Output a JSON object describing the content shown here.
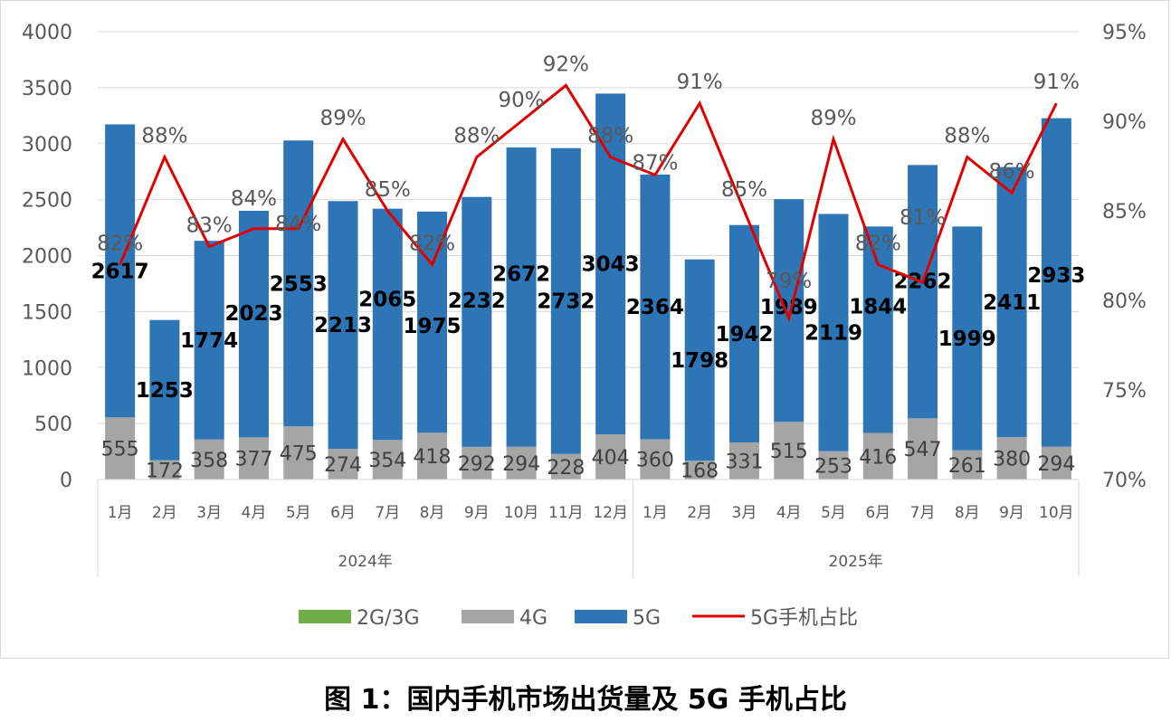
{
  "chart_data": {
    "type": "bar",
    "title": "图 1：国内手机市场出货量及 5G 手机占比",
    "categories": [
      "1月",
      "2月",
      "3月",
      "4月",
      "5月",
      "6月",
      "7月",
      "8月",
      "9月",
      "10月",
      "11月",
      "12月",
      "1月",
      "2月",
      "3月",
      "4月",
      "5月",
      "6月",
      "7月",
      "8月",
      "9月",
      "10月"
    ],
    "groups": [
      {
        "label": "2024年",
        "count": 12
      },
      {
        "label": "2025年",
        "count": 10
      }
    ],
    "series": [
      {
        "name": "2G/3G",
        "type": "stacked-bar",
        "color": "#70ad47",
        "values": [
          0,
          0,
          0,
          0,
          0,
          0,
          0,
          0,
          0,
          0,
          0,
          0,
          0,
          0,
          0,
          0,
          0,
          0,
          0,
          0,
          0,
          0
        ]
      },
      {
        "name": "4G",
        "type": "stacked-bar",
        "color": "#a5a5a5",
        "values": [
          555,
          172,
          358,
          377,
          475,
          274,
          354,
          418,
          292,
          294,
          228,
          404,
          360,
          168,
          331,
          515,
          253,
          416,
          547,
          261,
          380,
          294
        ]
      },
      {
        "name": "5G",
        "type": "stacked-bar",
        "color": "#2e75b6",
        "values": [
          2617,
          1253,
          1774,
          2023,
          2553,
          2213,
          2065,
          1975,
          2232,
          2672,
          2732,
          3043,
          2364,
          1798,
          1942,
          1989,
          2119,
          1844,
          2262,
          1999,
          2411,
          2933
        ]
      },
      {
        "name": "5G手机占比",
        "type": "line",
        "axis": "right",
        "color": "#e00000",
        "values": [
          82,
          88,
          83,
          84,
          84,
          89,
          85,
          82,
          88,
          90,
          92,
          88,
          87,
          91,
          85,
          79,
          89,
          82,
          81,
          88,
          86,
          91
        ]
      }
    ],
    "y_left": {
      "min": 0,
      "max": 4000,
      "ticks": [
        "0",
        "500",
        "1000",
        "1500",
        "2000",
        "2500",
        "3000",
        "3500",
        "4000"
      ]
    },
    "y_right": {
      "min": 70,
      "max": 95,
      "ticks": [
        "70%",
        "75%",
        "80%",
        "85%",
        "90%",
        "95%"
      ]
    },
    "grid": true,
    "legend": "bottom"
  }
}
